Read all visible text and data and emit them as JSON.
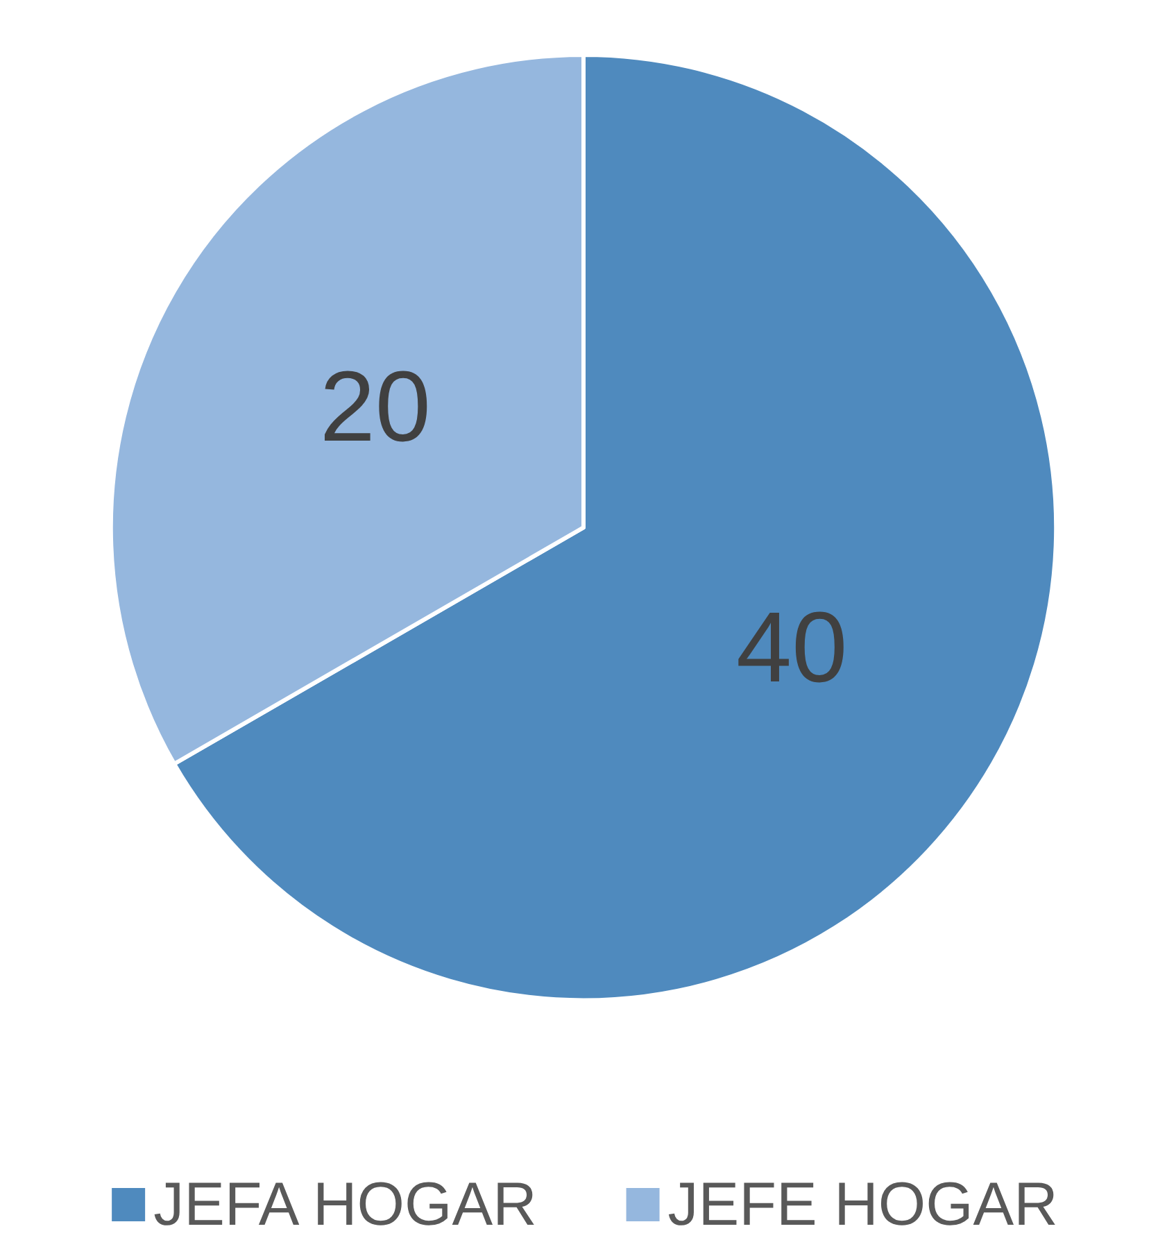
{
  "chart_data": {
    "type": "pie",
    "categories": [
      "JEFA HOGAR",
      "JEFE HOGAR"
    ],
    "values": [
      40,
      20
    ],
    "colors": [
      "#4f8abe",
      "#95b7de"
    ],
    "data_labels": true,
    "legend": "bottom"
  }
}
